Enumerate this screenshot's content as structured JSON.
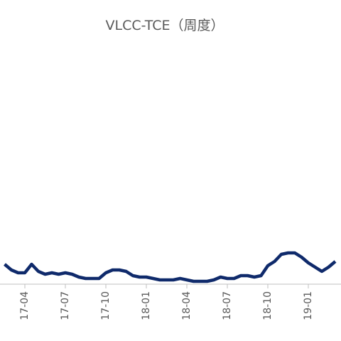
{
  "chart_data": {
    "type": "line",
    "title": "VLCC-TCE（周度）",
    "categories": [
      null,
      null,
      null,
      "17-04",
      null,
      null,
      null,
      null,
      null,
      "17-07",
      null,
      null,
      null,
      null,
      null,
      "17-10",
      null,
      null,
      null,
      null,
      null,
      "18-01",
      null,
      null,
      null,
      null,
      null,
      "18-04",
      null,
      null,
      null,
      null,
      null,
      "18-07",
      null,
      null,
      null,
      null,
      null,
      "18-10",
      null,
      null,
      null,
      null,
      null,
      "19-01",
      null,
      null,
      null,
      null
    ],
    "series": [
      {
        "color": "#0f2a6b",
        "values": [
          28,
          20,
          16,
          16,
          28,
          18,
          14,
          16,
          14,
          16,
          14,
          10,
          8,
          8,
          8,
          16,
          20,
          20,
          18,
          12,
          10,
          10,
          8,
          6,
          6,
          6,
          8,
          6,
          4,
          4,
          4,
          6,
          10,
          8,
          8,
          12,
          12,
          10,
          12,
          26,
          32,
          42,
          44,
          44,
          38,
          30,
          24,
          18,
          24,
          32
        ]
      }
    ],
    "ylim": [
      0,
      340
    ]
  }
}
